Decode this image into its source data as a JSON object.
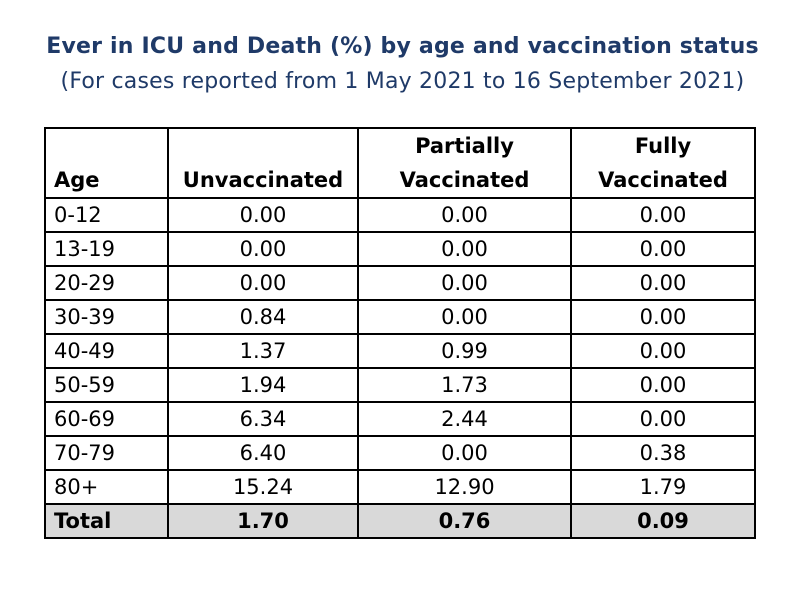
{
  "title": "Ever in ICU and Death (%) by age and vaccination status",
  "subtitle": "(For cases reported from 1 May 2021 to 16 September 2021)",
  "table": {
    "headers": {
      "age": "Age",
      "unvaccinated": "Unvaccinated",
      "partially_line1": "Partially",
      "partially_line2": "Vaccinated",
      "fully_line1": "Fully",
      "fully_line2": "Vaccinated"
    },
    "rows": [
      {
        "age": "0-12",
        "unvaccinated": "0.00",
        "partially": "0.00",
        "fully": "0.00"
      },
      {
        "age": "13-19",
        "unvaccinated": "0.00",
        "partially": "0.00",
        "fully": "0.00"
      },
      {
        "age": "20-29",
        "unvaccinated": "0.00",
        "partially": "0.00",
        "fully": "0.00"
      },
      {
        "age": "30-39",
        "unvaccinated": "0.84",
        "partially": "0.00",
        "fully": "0.00"
      },
      {
        "age": "40-49",
        "unvaccinated": "1.37",
        "partially": "0.99",
        "fully": "0.00"
      },
      {
        "age": "50-59",
        "unvaccinated": "1.94",
        "partially": "1.73",
        "fully": "0.00"
      },
      {
        "age": "60-69",
        "unvaccinated": "6.34",
        "partially": "2.44",
        "fully": "0.00"
      },
      {
        "age": "70-79",
        "unvaccinated": "6.40",
        "partially": "0.00",
        "fully": "0.38"
      },
      {
        "age": "80+",
        "unvaccinated": "15.24",
        "partially": "12.90",
        "fully": "1.79"
      }
    ],
    "total": {
      "age": "Total",
      "unvaccinated": "1.70",
      "partially": "0.76",
      "fully": "0.09"
    }
  },
  "colors": {
    "title": "#1f3a68",
    "total_row_bg": "#d9d9d9",
    "border": "#000000"
  }
}
